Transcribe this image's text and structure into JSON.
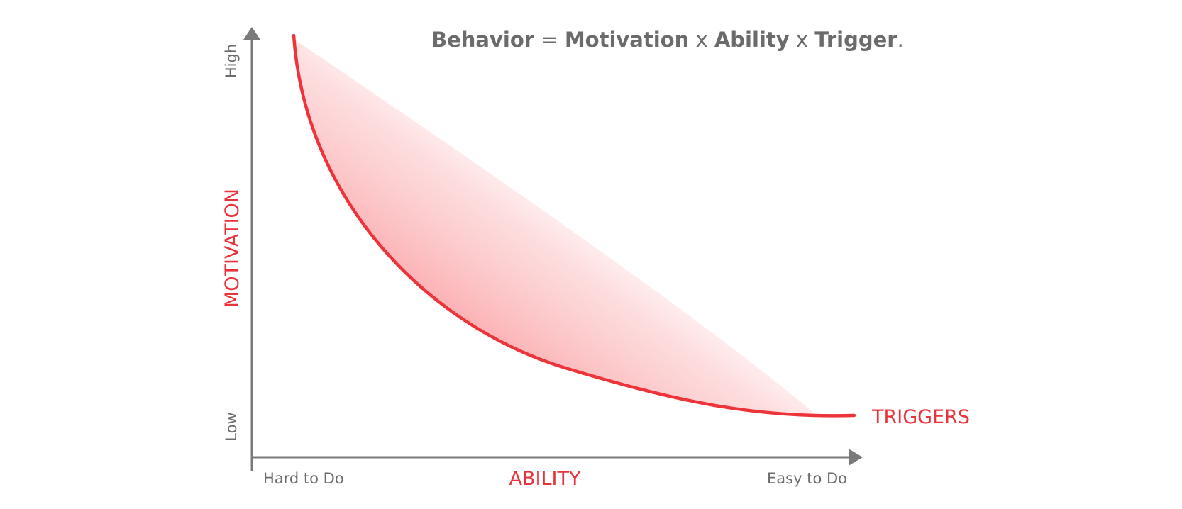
{
  "title": {
    "behavior": "Behavior",
    "equals": " = ",
    "motivation": "Motivation",
    "times1": " x ",
    "ability": "Ability",
    "times2": " x ",
    "trigger": "Trigger",
    "period": "."
  },
  "y_axis": {
    "label": "MOTIVATION",
    "high": "High",
    "low": "Low"
  },
  "x_axis": {
    "label": "ABILITY",
    "hard": "Hard to Do",
    "easy": "Easy to Do"
  },
  "curve": {
    "label": "TRIGGERS"
  },
  "colors": {
    "accent_red": "#e8333b",
    "axis_gray": "#7a7a7a",
    "text_gray": "#6b6b6b",
    "shade_pink": "#fba9ac"
  }
}
